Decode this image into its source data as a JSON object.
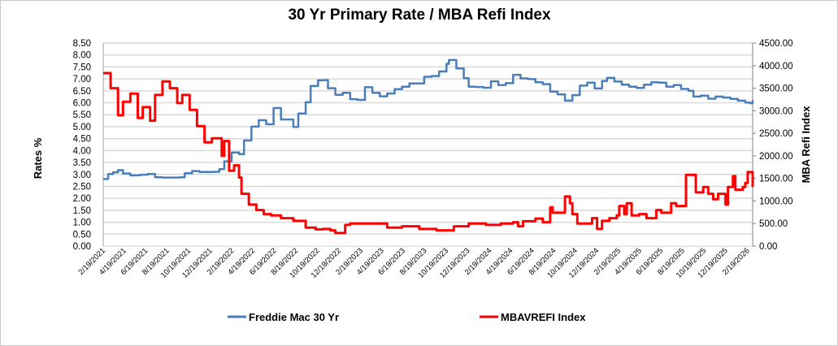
{
  "chart_data": {
    "type": "line",
    "title": "30 Yr Primary Rate / MBA Refi Index",
    "ylabel_left": "Rates %",
    "ylabel_right": "MBA Refi Index",
    "ylim_left": [
      0,
      8.5
    ],
    "ylim_right": [
      0,
      4500
    ],
    "yticks_left": [
      "0.00",
      "0.50",
      "1.00",
      "1.50",
      "2.00",
      "2.50",
      "3.00",
      "3.50",
      "4.00",
      "4.50",
      "5.00",
      "5.50",
      "6.00",
      "6.50",
      "7.00",
      "7.50",
      "8.00",
      "8.50"
    ],
    "yticks_right": [
      "0.00",
      "500.00",
      "1000.00",
      "1500.00",
      "2000.00",
      "2500.00",
      "3000.00",
      "3500.00",
      "4000.00",
      "4500.00"
    ],
    "xlim": [
      "2021-02-19",
      "2026-03-06"
    ],
    "xtick_labels": [
      "2/19/2021",
      "4/19/2021",
      "6/19/2021",
      "8/19/2021",
      "10/19/2021",
      "12/19/2021",
      "2/19/2022",
      "4/19/2022",
      "6/19/2022",
      "8/19/2022",
      "10/19/2022",
      "12/19/2022",
      "2/19/2023",
      "4/19/2023",
      "6/19/2023",
      "8/19/2023",
      "10/19/2023",
      "12/19/2023",
      "2/19/2024",
      "4/19/2024",
      "6/19/2024",
      "8/19/2024",
      "10/19/2024",
      "12/19/2024",
      "2/19/2025",
      "4/19/2025",
      "6/19/2025",
      "8/19/2025",
      "10/19/2025",
      "12/19/2025",
      "2/19/2026"
    ],
    "grid": true,
    "legend_position": "bottom",
    "series": [
      {
        "name": "Freddie Mac 30 Yr",
        "axis": "left",
        "color": "#4a7ebb",
        "points": [
          [
            "2021-02-19",
            2.81
          ],
          [
            "2021-03-05",
            3.02
          ],
          [
            "2021-03-19",
            3.09
          ],
          [
            "2021-04-02",
            3.18
          ],
          [
            "2021-04-16",
            3.04
          ],
          [
            "2021-05-07",
            2.96
          ],
          [
            "2021-06-04",
            2.99
          ],
          [
            "2021-06-25",
            3.02
          ],
          [
            "2021-07-16",
            2.88
          ],
          [
            "2021-08-06",
            2.87
          ],
          [
            "2021-09-03",
            2.87
          ],
          [
            "2021-09-24",
            2.88
          ],
          [
            "2021-10-08",
            3.05
          ],
          [
            "2021-10-29",
            3.14
          ],
          [
            "2021-11-19",
            3.1
          ],
          [
            "2021-12-10",
            3.1
          ],
          [
            "2021-12-31",
            3.11
          ],
          [
            "2022-01-14",
            3.22
          ],
          [
            "2022-01-28",
            3.55
          ],
          [
            "2022-02-18",
            3.92
          ],
          [
            "2022-03-11",
            3.85
          ],
          [
            "2022-03-25",
            4.42
          ],
          [
            "2022-04-15",
            5.0
          ],
          [
            "2022-05-06",
            5.27
          ],
          [
            "2022-05-27",
            5.1
          ],
          [
            "2022-06-17",
            5.78
          ],
          [
            "2022-07-08",
            5.3
          ],
          [
            "2022-07-29",
            5.3
          ],
          [
            "2022-08-12",
            4.99
          ],
          [
            "2022-08-26",
            5.55
          ],
          [
            "2022-09-16",
            6.02
          ],
          [
            "2022-09-30",
            6.7
          ],
          [
            "2022-10-21",
            6.94
          ],
          [
            "2022-11-04",
            6.95
          ],
          [
            "2022-11-18",
            6.61
          ],
          [
            "2022-12-09",
            6.33
          ],
          [
            "2022-12-30",
            6.42
          ],
          [
            "2023-01-20",
            6.15
          ],
          [
            "2023-02-10",
            6.12
          ],
          [
            "2023-03-03",
            6.65
          ],
          [
            "2023-03-24",
            6.42
          ],
          [
            "2023-04-14",
            6.27
          ],
          [
            "2023-05-05",
            6.39
          ],
          [
            "2023-05-26",
            6.57
          ],
          [
            "2023-06-16",
            6.67
          ],
          [
            "2023-07-07",
            6.81
          ],
          [
            "2023-07-28",
            6.81
          ],
          [
            "2023-08-18",
            7.09
          ],
          [
            "2023-09-08",
            7.12
          ],
          [
            "2023-09-29",
            7.31
          ],
          [
            "2023-10-20",
            7.63
          ],
          [
            "2023-10-27",
            7.79
          ],
          [
            "2023-11-17",
            7.44
          ],
          [
            "2023-12-08",
            7.03
          ],
          [
            "2023-12-22",
            6.67
          ],
          [
            "2024-01-12",
            6.66
          ],
          [
            "2024-02-02",
            6.63
          ],
          [
            "2024-02-23",
            6.9
          ],
          [
            "2024-03-15",
            6.74
          ],
          [
            "2024-04-05",
            6.82
          ],
          [
            "2024-04-26",
            7.17
          ],
          [
            "2024-05-17",
            7.02
          ],
          [
            "2024-06-07",
            6.99
          ],
          [
            "2024-06-28",
            6.86
          ],
          [
            "2024-07-19",
            6.78
          ],
          [
            "2024-08-09",
            6.47
          ],
          [
            "2024-08-30",
            6.35
          ],
          [
            "2024-09-20",
            6.09
          ],
          [
            "2024-10-11",
            6.32
          ],
          [
            "2024-11-01",
            6.72
          ],
          [
            "2024-11-22",
            6.84
          ],
          [
            "2024-12-13",
            6.6
          ],
          [
            "2025-01-03",
            6.91
          ],
          [
            "2025-01-17",
            7.04
          ],
          [
            "2025-02-07",
            6.89
          ],
          [
            "2025-02-28",
            6.76
          ],
          [
            "2025-03-21",
            6.67
          ],
          [
            "2025-04-11",
            6.62
          ],
          [
            "2025-05-02",
            6.76
          ],
          [
            "2025-05-23",
            6.86
          ],
          [
            "2025-06-13",
            6.84
          ],
          [
            "2025-07-04",
            6.67
          ],
          [
            "2025-07-25",
            6.74
          ],
          [
            "2025-08-15",
            6.58
          ],
          [
            "2025-09-05",
            6.5
          ],
          [
            "2025-09-19",
            6.26
          ],
          [
            "2025-10-10",
            6.3
          ],
          [
            "2025-10-31",
            6.17
          ],
          [
            "2025-11-21",
            6.26
          ],
          [
            "2025-12-12",
            6.22
          ],
          [
            "2026-01-02",
            6.16
          ],
          [
            "2026-01-23",
            6.09
          ],
          [
            "2026-02-13",
            6.01
          ],
          [
            "2026-02-27",
            5.98
          ],
          [
            "2026-03-06",
            6.11
          ]
        ]
      },
      {
        "name": "MBAVREFI Index",
        "axis": "right",
        "color": "#ff0000",
        "points": [
          [
            "2021-02-19",
            3834
          ],
          [
            "2021-03-12",
            3500
          ],
          [
            "2021-04-02",
            2900
          ],
          [
            "2021-04-16",
            3200
          ],
          [
            "2021-05-07",
            3380
          ],
          [
            "2021-05-28",
            2840
          ],
          [
            "2021-06-11",
            3080
          ],
          [
            "2021-07-02",
            2780
          ],
          [
            "2021-07-16",
            3350
          ],
          [
            "2021-08-06",
            3650
          ],
          [
            "2021-08-27",
            3500
          ],
          [
            "2021-09-17",
            3170
          ],
          [
            "2021-10-01",
            3350
          ],
          [
            "2021-10-22",
            3020
          ],
          [
            "2021-11-12",
            2660
          ],
          [
            "2021-12-03",
            2300
          ],
          [
            "2021-12-24",
            2390
          ],
          [
            "2022-01-21",
            2000
          ],
          [
            "2022-01-28",
            2330
          ],
          [
            "2022-02-11",
            1670
          ],
          [
            "2022-02-25",
            1790
          ],
          [
            "2022-03-11",
            1520
          ],
          [
            "2022-03-18",
            1160
          ],
          [
            "2022-04-08",
            920
          ],
          [
            "2022-04-29",
            800
          ],
          [
            "2022-05-20",
            710
          ],
          [
            "2022-06-10",
            680
          ],
          [
            "2022-07-08",
            620
          ],
          [
            "2022-08-12",
            560
          ],
          [
            "2022-09-02",
            560
          ],
          [
            "2022-09-16",
            410
          ],
          [
            "2022-10-14",
            370
          ],
          [
            "2022-11-04",
            380
          ],
          [
            "2022-11-25",
            350
          ],
          [
            "2022-12-09",
            290
          ],
          [
            "2023-01-06",
            470
          ],
          [
            "2023-01-20",
            500
          ],
          [
            "2023-03-03",
            500
          ],
          [
            "2023-04-14",
            500
          ],
          [
            "2023-05-05",
            410
          ],
          [
            "2023-06-16",
            440
          ],
          [
            "2023-08-04",
            380
          ],
          [
            "2023-09-22",
            350
          ],
          [
            "2023-10-27",
            350
          ],
          [
            "2023-11-10",
            440
          ],
          [
            "2023-12-22",
            500
          ],
          [
            "2024-02-09",
            470
          ],
          [
            "2024-03-22",
            500
          ],
          [
            "2024-04-26",
            530
          ],
          [
            "2024-05-10",
            440
          ],
          [
            "2024-05-24",
            550
          ],
          [
            "2024-06-28",
            610
          ],
          [
            "2024-07-19",
            530
          ],
          [
            "2024-08-09",
            860
          ],
          [
            "2024-08-16",
            740
          ],
          [
            "2024-09-13",
            740
          ],
          [
            "2024-09-20",
            1100
          ],
          [
            "2024-10-04",
            950
          ],
          [
            "2024-10-11",
            710
          ],
          [
            "2024-10-25",
            500
          ],
          [
            "2024-11-29",
            500
          ],
          [
            "2024-12-06",
            620
          ],
          [
            "2024-12-20",
            380
          ],
          [
            "2025-01-03",
            560
          ],
          [
            "2025-01-24",
            620
          ],
          [
            "2025-02-14",
            680
          ],
          [
            "2025-02-21",
            890
          ],
          [
            "2025-03-07",
            710
          ],
          [
            "2025-03-14",
            950
          ],
          [
            "2025-03-28",
            680
          ],
          [
            "2025-04-18",
            710
          ],
          [
            "2025-05-09",
            620
          ],
          [
            "2025-06-06",
            800
          ],
          [
            "2025-06-20",
            740
          ],
          [
            "2025-07-18",
            950
          ],
          [
            "2025-08-01",
            890
          ],
          [
            "2025-08-29",
            1580
          ],
          [
            "2025-09-19",
            1580
          ],
          [
            "2025-09-26",
            1190
          ],
          [
            "2025-10-17",
            1310
          ],
          [
            "2025-10-31",
            1160
          ],
          [
            "2025-11-14",
            1040
          ],
          [
            "2025-11-28",
            1160
          ],
          [
            "2025-12-19",
            920
          ],
          [
            "2025-12-26",
            1310
          ],
          [
            "2026-01-09",
            1550
          ],
          [
            "2026-01-16",
            1250
          ],
          [
            "2026-02-06",
            1310
          ],
          [
            "2026-02-13",
            1400
          ],
          [
            "2026-02-20",
            1640
          ],
          [
            "2026-03-06",
            1310
          ]
        ]
      }
    ]
  },
  "legend": {
    "items": [
      "Freddie Mac 30 Yr",
      "MBAVREFI Index"
    ]
  }
}
